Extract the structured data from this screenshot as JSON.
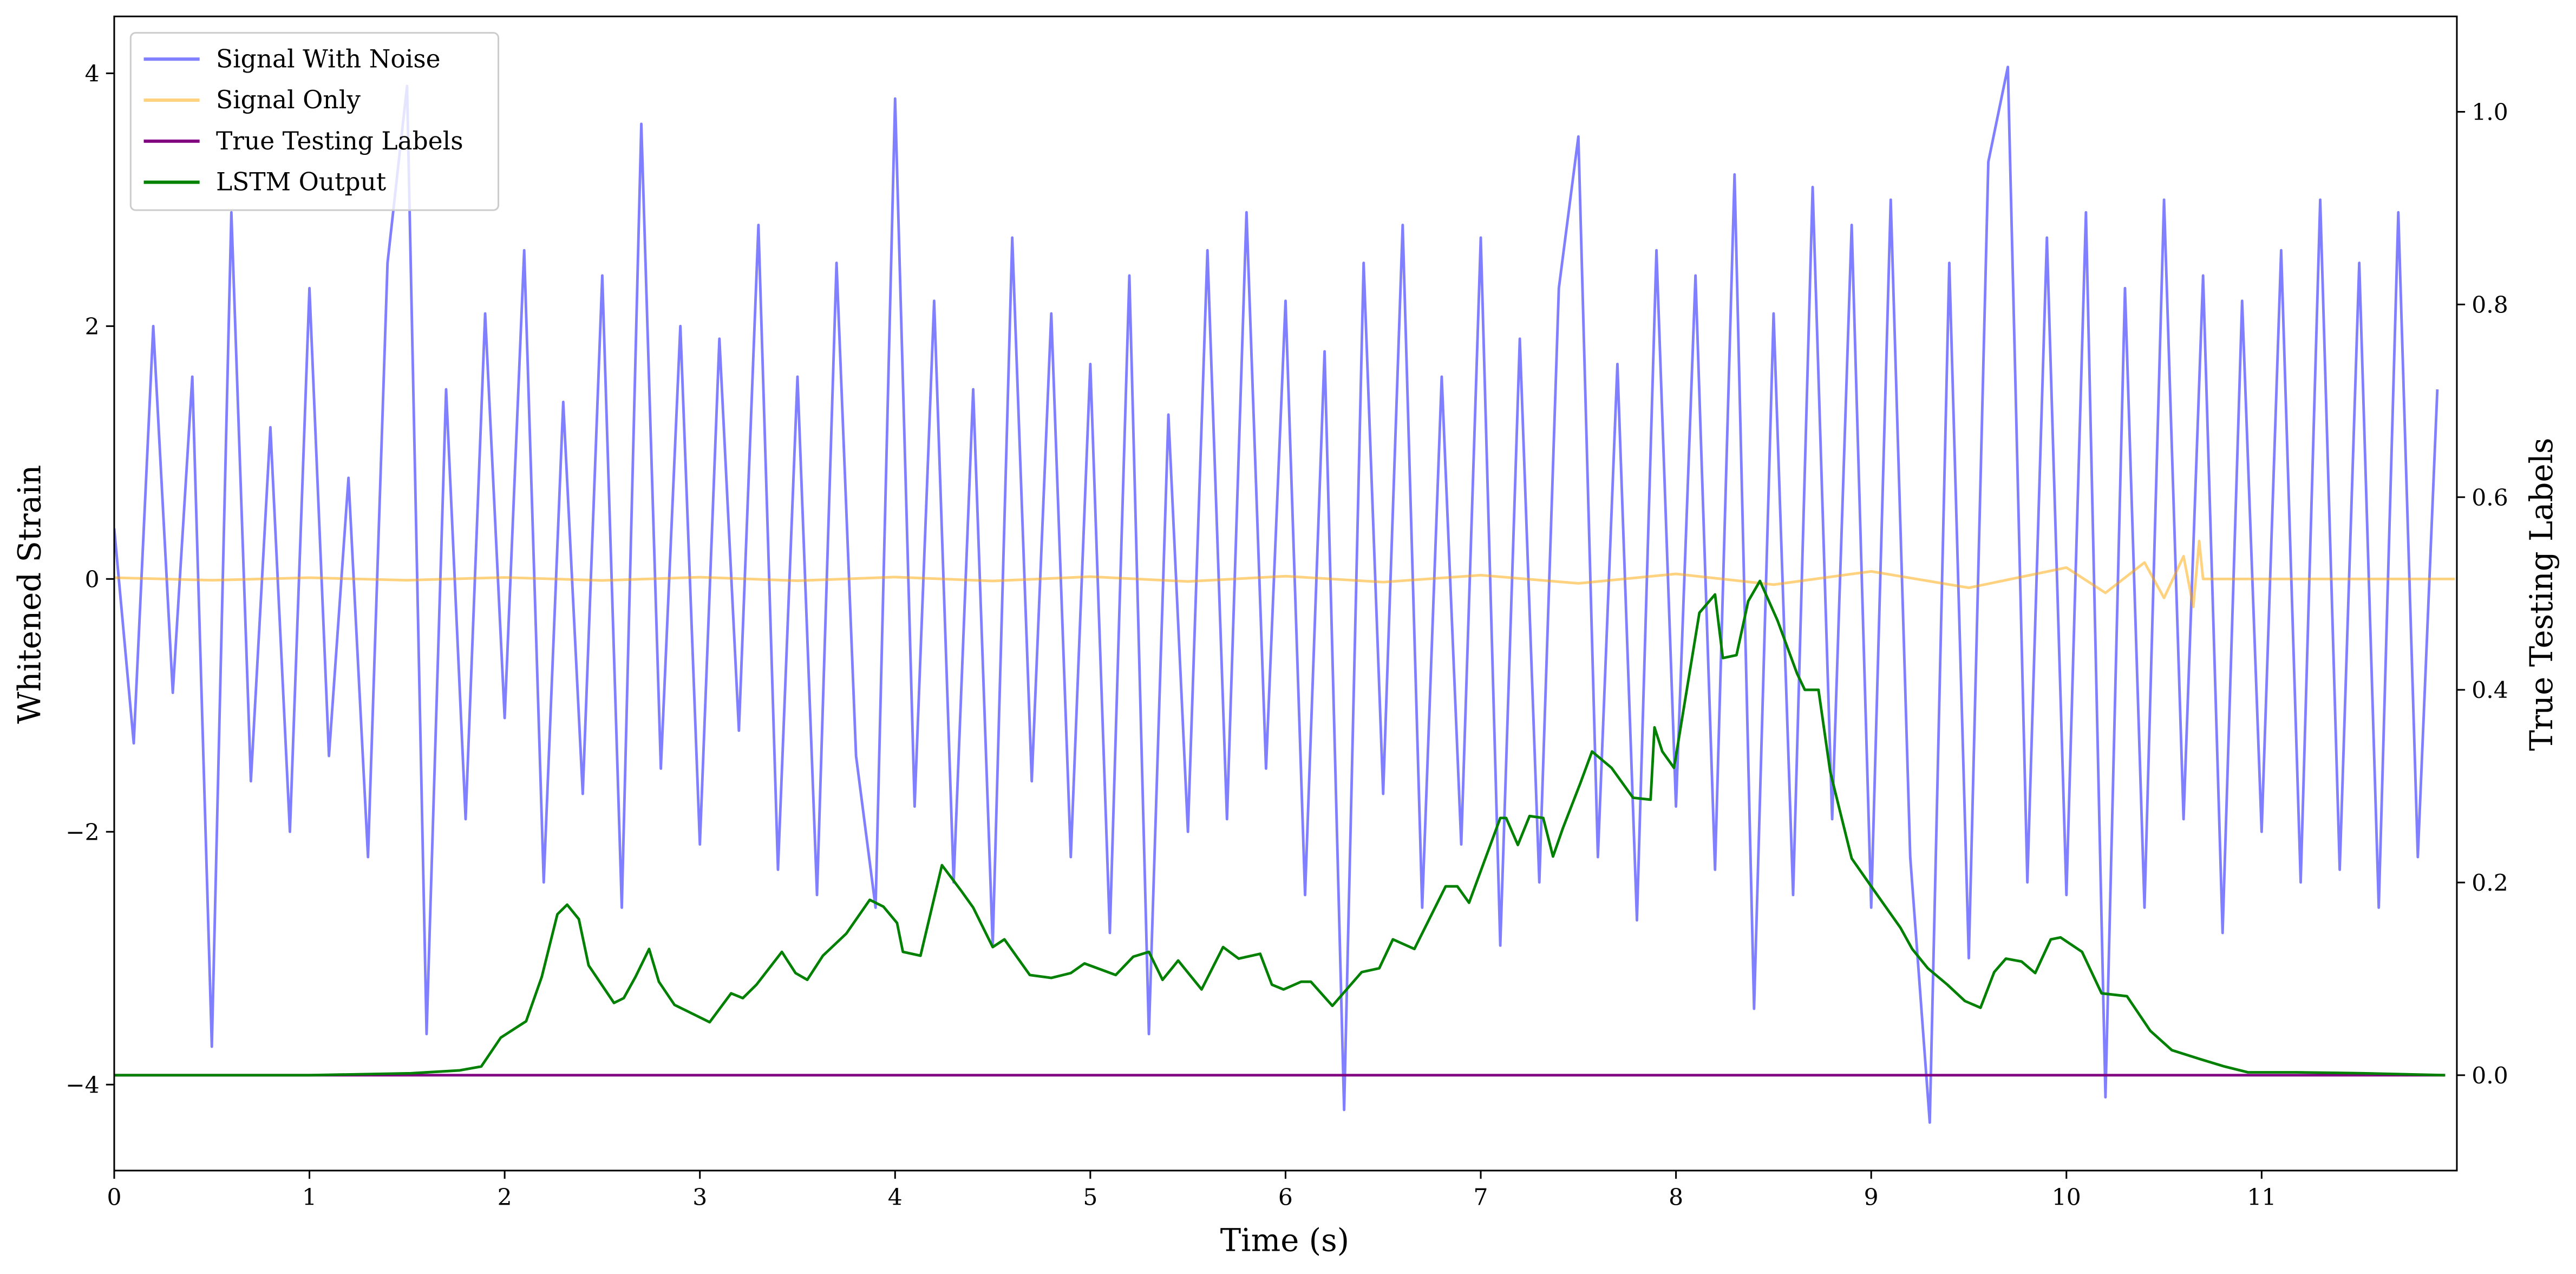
{
  "chart_data": {
    "type": "line",
    "xlabel": "Time (s)",
    "ylabel": "Whitened Strain",
    "y2label": "True Testing Labels",
    "xlim": [
      0,
      12
    ],
    "xticks": [
      0,
      1,
      2,
      3,
      4,
      5,
      6,
      7,
      8,
      9,
      10,
      11
    ],
    "ylim": [
      -4.68,
      4.45
    ],
    "yticks": [
      {
        "value": -4,
        "label": "−4"
      },
      {
        "value": -2,
        "label": "−2"
      },
      0,
      2,
      4
    ],
    "y2lim": [
      -0.099,
      1.099
    ],
    "y2ticks": [
      {
        "value": 0,
        "label": "0.0"
      },
      {
        "value": 0.2,
        "label": "0.2"
      },
      {
        "value": 0.4,
        "label": "0.4"
      },
      {
        "value": 0.6,
        "label": "0.6"
      },
      {
        "value": 0.8,
        "label": "0.8"
      },
      {
        "value": 1.0,
        "label": "1.0"
      }
    ],
    "legend": "upper left",
    "series": [
      {
        "name": "Signal With Noise",
        "color": "#0000ff",
        "opacity": 0.5,
        "axis": "y",
        "x": [
          0,
          0.1,
          0.2,
          0.3,
          0.4,
          0.5,
          0.6,
          0.7,
          0.8,
          0.9,
          1.0,
          1.1,
          1.2,
          1.3,
          1.4,
          1.5,
          1.6,
          1.7,
          1.8,
          1.9,
          2.0,
          2.1,
          2.2,
          2.3,
          2.4,
          2.5,
          2.6,
          2.7,
          2.8,
          2.9,
          3.0,
          3.1,
          3.2,
          3.3,
          3.4,
          3.5,
          3.6,
          3.7,
          3.8,
          3.9,
          4.0,
          4.1,
          4.2,
          4.3,
          4.4,
          4.5,
          4.6,
          4.7,
          4.8,
          4.9,
          5.0,
          5.1,
          5.2,
          5.3,
          5.4,
          5.5,
          5.6,
          5.7,
          5.8,
          5.9,
          6.0,
          6.1,
          6.2,
          6.3,
          6.4,
          6.5,
          6.6,
          6.7,
          6.8,
          6.9,
          7.0,
          7.1,
          7.2,
          7.3,
          7.4,
          7.5,
          7.6,
          7.7,
          7.8,
          7.9,
          8.0,
          8.1,
          8.2,
          8.3,
          8.4,
          8.5,
          8.6,
          8.7,
          8.8,
          8.9,
          9.0,
          9.1,
          9.2,
          9.3,
          9.4,
          9.5,
          9.6,
          9.7,
          9.8,
          9.9,
          10.0,
          10.1,
          10.2,
          10.3,
          10.4,
          10.5,
          10.6,
          10.7,
          10.8,
          10.9,
          11.0,
          11.1,
          11.2,
          11.3,
          11.4,
          11.5,
          11.6,
          11.7,
          11.8,
          11.9
        ],
        "values": [
          0.4,
          -1.3,
          2.0,
          -0.9,
          1.6,
          -3.7,
          2.9,
          -1.6,
          1.2,
          -2.0,
          2.3,
          -1.4,
          0.8,
          -2.2,
          2.5,
          3.9,
          -3.6,
          1.5,
          -1.9,
          2.1,
          -1.1,
          2.6,
          -2.4,
          1.4,
          -1.7,
          2.4,
          -2.6,
          3.6,
          -1.5,
          2.0,
          -2.1,
          1.9,
          -1.2,
          2.8,
          -2.3,
          1.6,
          -2.5,
          2.5,
          -1.4,
          -2.6,
          3.8,
          -1.8,
          2.2,
          -2.4,
          1.5,
          -2.9,
          2.7,
          -1.6,
          2.1,
          -2.2,
          1.7,
          -2.8,
          2.4,
          -3.6,
          1.3,
          -2.0,
          2.6,
          -1.9,
          2.9,
          -1.5,
          2.2,
          -2.5,
          1.8,
          -4.2,
          2.5,
          -1.7,
          2.8,
          -2.6,
          1.6,
          -2.1,
          2.7,
          -2.9,
          1.9,
          -2.4,
          2.3,
          3.5,
          -2.2,
          1.7,
          -2.7,
          2.6,
          -1.8,
          2.4,
          -2.3,
          3.2,
          -3.4,
          2.1,
          -2.5,
          3.1,
          -1.9,
          2.8,
          -2.6,
          3.0,
          -2.2,
          -4.3,
          2.5,
          -3.0,
          3.3,
          4.05,
          -2.4,
          2.7,
          -2.5,
          2.9,
          -4.1,
          2.3,
          -2.6,
          3.0,
          -1.9,
          2.4,
          -2.8,
          2.2,
          -2.0,
          2.6,
          -2.4,
          3.0,
          -2.3,
          2.5,
          -2.6,
          2.9,
          -2.2,
          1.5
        ]
      },
      {
        "name": "Signal Only",
        "color": "#ffa500",
        "opacity": 0.5,
        "axis": "y",
        "x": [
          0,
          0.5,
          1.0,
          1.5,
          2.0,
          2.5,
          3.0,
          3.5,
          4.0,
          4.5,
          5.0,
          5.5,
          6.0,
          6.5,
          7.0,
          7.5,
          8.0,
          8.5,
          9.0,
          9.5,
          10.0,
          10.2,
          10.4,
          10.5,
          10.6,
          10.65,
          10.68,
          10.7,
          11.99
        ],
        "values": [
          0.01,
          -0.01,
          0.01,
          -0.01,
          0.012,
          -0.012,
          0.014,
          -0.014,
          0.015,
          -0.016,
          0.018,
          -0.02,
          0.022,
          -0.025,
          0.03,
          -0.035,
          0.04,
          -0.045,
          0.06,
          -0.07,
          0.09,
          -0.11,
          0.13,
          -0.15,
          0.18,
          -0.22,
          0.3,
          0,
          0
        ]
      },
      {
        "name": "True Testing Labels",
        "color": "#800080",
        "opacity": 1,
        "axis": "y2",
        "x": [
          0,
          11.94
        ],
        "values": [
          0,
          0
        ]
      },
      {
        "name": "LSTM Output",
        "color": "#008000",
        "opacity": 1,
        "axis": "y2",
        "x": [
          0,
          1.0,
          1.52,
          1.77,
          1.88,
          1.98,
          2.11,
          2.19,
          2.27,
          2.32,
          2.38,
          2.43,
          2.56,
          2.61,
          2.67,
          2.74,
          2.79,
          2.87,
          3.05,
          3.16,
          3.22,
          3.29,
          3.42,
          3.49,
          3.55,
          3.63,
          3.75,
          3.87,
          3.94,
          4.01,
          4.04,
          4.13,
          4.24,
          4.34,
          4.4,
          4.5,
          4.56,
          4.69,
          4.8,
          4.9,
          4.97,
          5.13,
          5.22,
          5.3,
          5.37,
          5.45,
          5.57,
          5.68,
          5.76,
          5.87,
          5.93,
          5.99,
          6.08,
          6.13,
          6.24,
          6.39,
          6.48,
          6.55,
          6.66,
          6.82,
          6.88,
          6.94,
          7.02,
          7.1,
          7.13,
          7.19,
          7.25,
          7.32,
          7.37,
          7.42,
          7.51,
          7.57,
          7.67,
          7.78,
          7.87,
          7.89,
          7.93,
          7.99,
          8.12,
          8.2,
          8.24,
          8.31,
          8.37,
          8.43,
          8.52,
          8.62,
          8.66,
          8.73,
          8.79,
          8.9,
          9.0,
          9.15,
          9.21,
          9.29,
          9.39,
          9.48,
          9.56,
          9.63,
          9.69,
          9.77,
          9.84,
          9.92,
          9.97,
          10.08,
          10.18,
          10.31,
          10.43,
          10.54,
          10.68,
          10.81,
          10.93,
          11.18,
          11.52,
          11.94
        ],
        "values": [
          0,
          0,
          0.002,
          0.005,
          0.009,
          0.039,
          0.056,
          0.102,
          0.167,
          0.177,
          0.162,
          0.114,
          0.075,
          0.08,
          0.102,
          0.131,
          0.097,
          0.073,
          0.055,
          0.085,
          0.08,
          0.094,
          0.128,
          0.106,
          0.099,
          0.124,
          0.147,
          0.182,
          0.175,
          0.158,
          0.128,
          0.124,
          0.218,
          0.191,
          0.174,
          0.133,
          0.141,
          0.104,
          0.101,
          0.106,
          0.116,
          0.104,
          0.123,
          0.128,
          0.099,
          0.119,
          0.089,
          0.133,
          0.121,
          0.126,
          0.094,
          0.089,
          0.097,
          0.097,
          0.072,
          0.107,
          0.111,
          0.141,
          0.131,
          0.196,
          0.196,
          0.179,
          0.223,
          0.267,
          0.267,
          0.239,
          0.269,
          0.267,
          0.227,
          0.256,
          0.303,
          0.336,
          0.319,
          0.288,
          0.286,
          0.361,
          0.336,
          0.319,
          0.48,
          0.499,
          0.433,
          0.436,
          0.492,
          0.513,
          0.472,
          0.417,
          0.4,
          0.4,
          0.315,
          0.225,
          0.196,
          0.153,
          0.131,
          0.111,
          0.094,
          0.077,
          0.07,
          0.107,
          0.121,
          0.118,
          0.106,
          0.141,
          0.143,
          0.128,
          0.085,
          0.082,
          0.046,
          0.026,
          0.017,
          0.009,
          0.003,
          0.003,
          0.002,
          0
        ]
      }
    ]
  }
}
